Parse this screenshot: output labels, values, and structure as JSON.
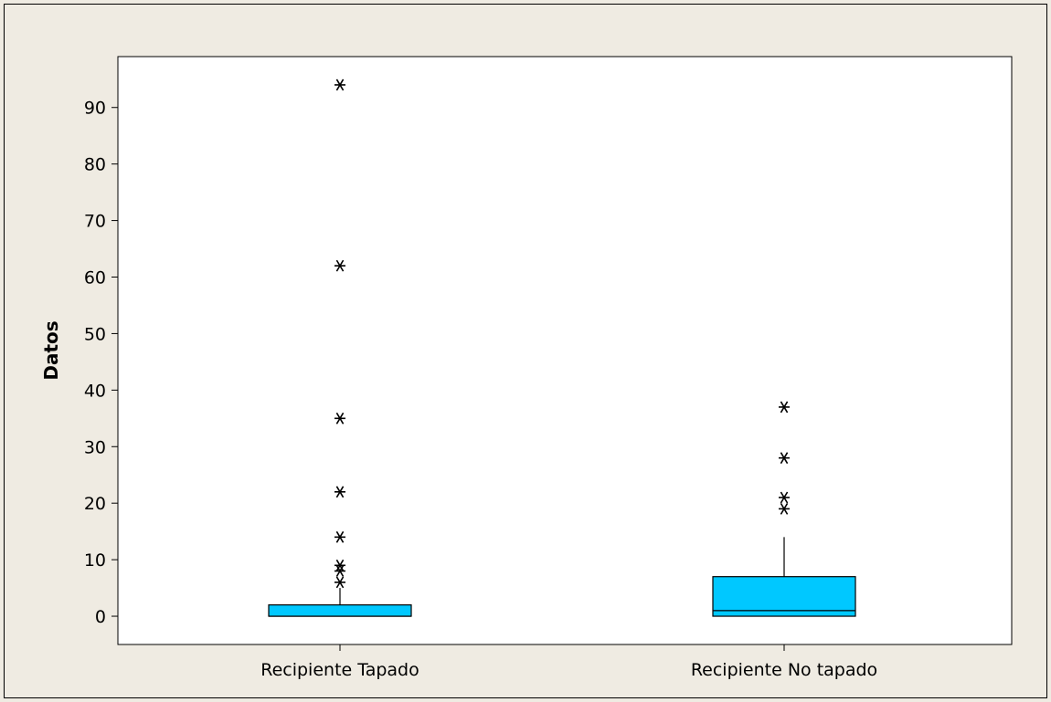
{
  "chart_data": {
    "type": "boxplot",
    "title": "",
    "xlabel": "",
    "ylabel": "Datos",
    "ylim": [
      -5,
      99
    ],
    "yticks": [
      0,
      10,
      20,
      30,
      40,
      50,
      60,
      70,
      80,
      90
    ],
    "grid": false,
    "colors": {
      "box_fill": "#00c8ff",
      "plot_bg": "#ffffff",
      "page_bg": "#efebe2",
      "stroke": "#000000"
    },
    "categories": [
      "Recipiente Tapado",
      "Recipiente No tapado"
    ],
    "boxes": [
      {
        "name": "Recipiente Tapado",
        "min": 0,
        "q1": 0,
        "median": 0,
        "q3": 2,
        "whisker_high": 5,
        "outliers": [
          6,
          8,
          9,
          14,
          22,
          35,
          62,
          94
        ]
      },
      {
        "name": "Recipiente No tapado",
        "min": 0,
        "q1": 0,
        "median": 1,
        "q3": 7,
        "whisker_high": 14,
        "outliers": [
          19,
          21,
          28,
          37
        ]
      }
    ]
  }
}
